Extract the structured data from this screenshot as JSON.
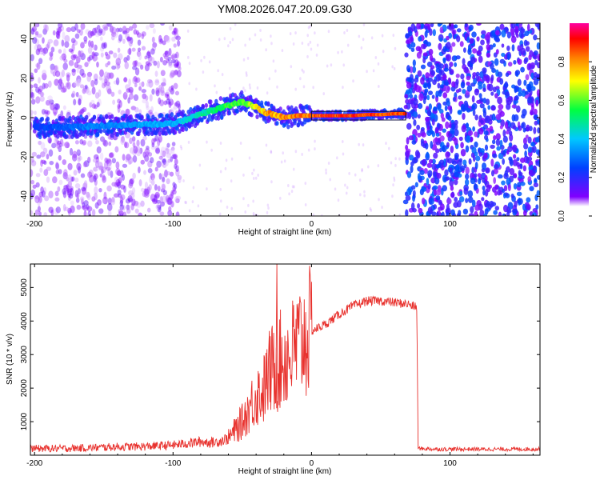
{
  "title": "YM08.2026.047.20.09.G30",
  "chart_data": [
    {
      "type": "heatmap",
      "xlabel": "Height of straight line (km)",
      "ylabel": "Frequency (Hz)",
      "xlim": [
        -203,
        165
      ],
      "ylim": [
        -50,
        48
      ],
      "x_ticks": [
        -200,
        -100,
        0,
        100
      ],
      "y_ticks": [
        -40,
        -20,
        0,
        20,
        40
      ],
      "colorbar": {
        "label": "Normalized spectral amplitude",
        "range": [
          0,
          1
        ],
        "ticks": [
          0.0,
          0.2,
          0.4,
          0.6,
          0.8
        ]
      },
      "ridge": {
        "x": [
          -200,
          -180,
          -160,
          -140,
          -120,
          -100,
          -90,
          -80,
          -70,
          -60,
          -50,
          -45,
          -40,
          -35,
          -30,
          -25,
          -20,
          -10,
          0,
          10,
          20,
          30,
          40,
          50,
          60,
          68
        ],
        "freq": [
          -5,
          -5,
          -4.5,
          -4,
          -3.5,
          -3,
          -1,
          2,
          4,
          6,
          8,
          6.5,
          5.5,
          3,
          2,
          1,
          0,
          1,
          1,
          1,
          1,
          1,
          1.5,
          1.5,
          2,
          2
        ],
        "amplitude": [
          0.25,
          0.3,
          0.35,
          0.35,
          0.4,
          0.4,
          0.45,
          0.5,
          0.55,
          0.6,
          0.65,
          0.7,
          0.75,
          0.8,
          0.85,
          0.85,
          0.85,
          0.9,
          0.9,
          0.95,
          0.95,
          0.95,
          0.95,
          0.95,
          0.95,
          0.9
        ]
      },
      "noise_regions": [
        {
          "x_range": [
            -203,
            -95
          ],
          "level": "moderate"
        },
        {
          "x_range": [
            68,
            165
          ],
          "level": "strong"
        }
      ]
    },
    {
      "type": "line",
      "xlabel": "Height of straight line (km)",
      "ylabel": "SNR (10 * v/v)",
      "xlim": [
        -203,
        165
      ],
      "ylim": [
        0,
        5700
      ],
      "x_ticks": [
        -200,
        -100,
        0,
        100
      ],
      "y_ticks": [
        1000,
        2000,
        3000,
        4000,
        5000
      ],
      "series": [
        {
          "name": "SNR",
          "color": "#e8322e",
          "x": [
            -203,
            -180,
            -160,
            -140,
            -120,
            -100,
            -90,
            -80,
            -70,
            -60,
            -50,
            -45,
            -40,
            -35,
            -30,
            -25,
            -20,
            -15,
            -10,
            -5,
            0,
            10,
            20,
            30,
            40,
            50,
            60,
            70,
            76,
            77,
            78,
            90,
            120,
            165
          ],
          "y": [
            200,
            200,
            220,
            250,
            260,
            300,
            350,
            400,
            380,
            500,
            1000,
            1400,
            1800,
            1900,
            2500,
            2700,
            2900,
            3000,
            3300,
            3500,
            3700,
            3900,
            4200,
            4450,
            4600,
            4600,
            4550,
            4500,
            4400,
            200,
            200,
            180,
            180,
            180
          ]
        }
      ],
      "spikes": [
        {
          "x": -25,
          "y": 5700
        }
      ]
    }
  ]
}
